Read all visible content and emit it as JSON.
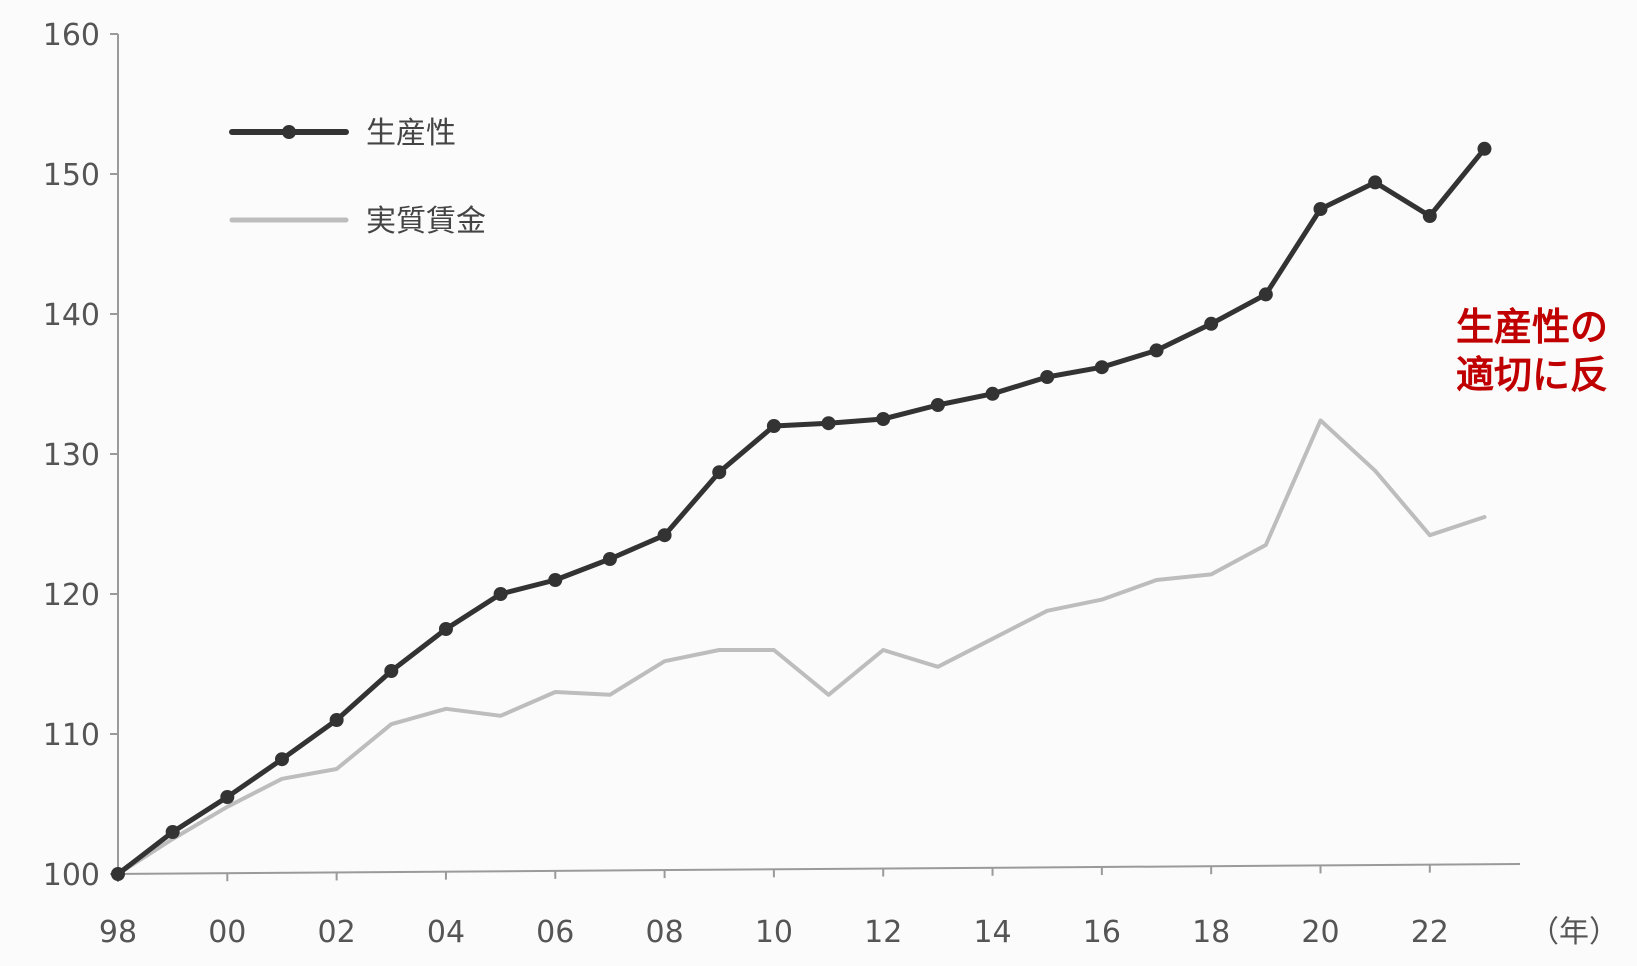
{
  "chart_data": {
    "type": "line",
    "title": "",
    "xlabel": "",
    "ylabel": "",
    "x_unit_label": "（年）",
    "x": [
      1998,
      1999,
      2000,
      2001,
      2002,
      2003,
      2004,
      2005,
      2006,
      2007,
      2008,
      2009,
      2010,
      2011,
      2012,
      2013,
      2014,
      2015,
      2016,
      2017,
      2018,
      2019,
      2020,
      2021,
      2022,
      2023
    ],
    "xticks": [
      "98",
      "00",
      "02",
      "04",
      "06",
      "08",
      "10",
      "12",
      "14",
      "16",
      "18",
      "20",
      "22"
    ],
    "ylim": [
      100,
      160
    ],
    "yticks": [
      "100",
      "110",
      "120",
      "130",
      "140",
      "150",
      "160"
    ],
    "grid": false,
    "legend_position": "top-left",
    "series": [
      {
        "name": "生産性",
        "color": "#333333",
        "markers": true,
        "values": [
          100.0,
          103.0,
          105.5,
          108.2,
          111.0,
          114.5,
          117.5,
          120.0,
          121.0,
          122.5,
          124.2,
          128.7,
          132.0,
          132.2,
          132.5,
          133.5,
          134.3,
          135.5,
          136.2,
          137.4,
          139.3,
          141.4,
          147.5,
          149.4,
          147.0,
          151.8
        ]
      },
      {
        "name": "実質賃金",
        "color": "#bdbdbd",
        "markers": false,
        "values": [
          100.0,
          102.5,
          104.8,
          106.8,
          107.5,
          110.7,
          111.8,
          111.3,
          113.0,
          112.8,
          115.2,
          116.0,
          116.0,
          112.8,
          116.0,
          114.8,
          116.8,
          118.8,
          119.6,
          121.0,
          121.4,
          123.5,
          132.4,
          128.8,
          124.2,
          125.5
        ]
      }
    ],
    "annotation": {
      "lines": [
        "生産性の",
        "適切に反"
      ],
      "color": "#c00000"
    }
  }
}
